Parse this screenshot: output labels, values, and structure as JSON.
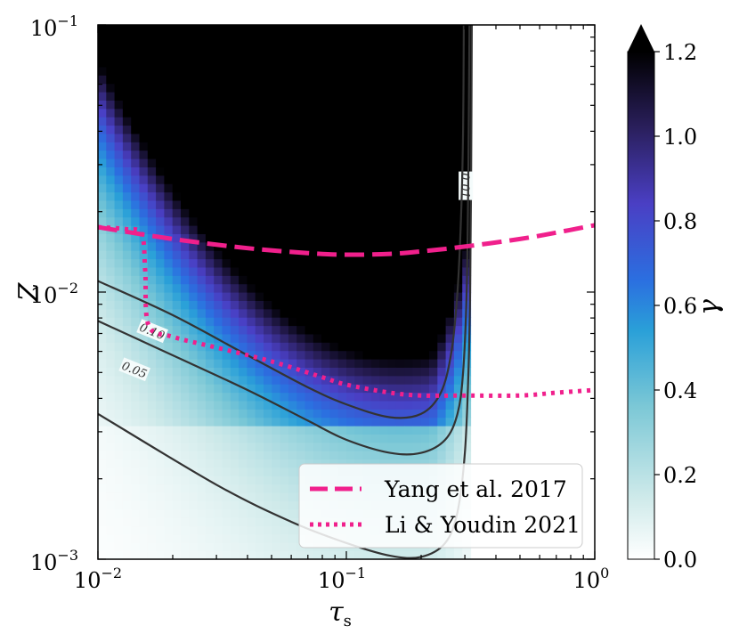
{
  "chart_data": {
    "type": "heatmap",
    "title": "",
    "xlabel": "τ",
    "xlabel_sub": "s",
    "ylabel": "Z",
    "x_scale": "log",
    "y_scale": "log",
    "xlim": [
      0.01,
      1
    ],
    "ylim": [
      0.001,
      0.1
    ],
    "x_ticks": [
      {
        "base": "10",
        "exp": "−2"
      },
      {
        "base": "10",
        "exp": "−1"
      },
      {
        "base": "10",
        "exp": "0"
      }
    ],
    "y_ticks": [
      {
        "base": "10",
        "exp": "−3"
      },
      {
        "base": "10",
        "exp": "−2"
      },
      {
        "base": "10",
        "exp": "−1"
      }
    ],
    "colorbar": {
      "label": "γ",
      "range": [
        0.0,
        1.2
      ],
      "ticks": [
        "0.0",
        "0.2",
        "0.4",
        "0.6",
        "0.8",
        "1.0",
        "1.2"
      ],
      "extend": "max",
      "colors": [
        "#ffffff",
        "#cfeaea",
        "#7cc8d6",
        "#2aa0d8",
        "#2b6fe0",
        "#4a3fc4",
        "#2a1f5c",
        "#000000"
      ]
    },
    "contours": [
      {
        "level": "0.01",
        "points": [
          [
            0.01,
            0.0035
          ],
          [
            0.03,
            0.0019
          ],
          [
            0.06,
            0.00138
          ],
          [
            0.1,
            0.00115
          ],
          [
            0.15,
            0.00103
          ],
          [
            0.2,
            0.00102
          ],
          [
            0.25,
            0.00115
          ],
          [
            0.28,
            0.0015
          ],
          [
            0.3,
            0.0025
          ],
          [
            0.31,
            0.005
          ],
          [
            0.315,
            0.01
          ],
          [
            0.318,
            0.03
          ],
          [
            0.32,
            0.1
          ]
        ]
      },
      {
        "level": "0.05",
        "points": [
          [
            0.01,
            0.0078
          ],
          [
            0.02,
            0.0058
          ],
          [
            0.04,
            0.0043
          ],
          [
            0.07,
            0.0033
          ],
          [
            0.1,
            0.0028
          ],
          [
            0.15,
            0.0025
          ],
          [
            0.2,
            0.0025
          ],
          [
            0.25,
            0.0028
          ],
          [
            0.28,
            0.0035
          ],
          [
            0.295,
            0.005
          ],
          [
            0.305,
            0.01
          ],
          [
            0.31,
            0.03
          ],
          [
            0.313,
            0.1
          ]
        ]
      },
      {
        "level": "0.10",
        "points": [
          [
            0.01,
            0.011
          ],
          [
            0.02,
            0.0082
          ],
          [
            0.04,
            0.0058
          ],
          [
            0.07,
            0.0044
          ],
          [
            0.1,
            0.0038
          ],
          [
            0.15,
            0.0034
          ],
          [
            0.2,
            0.0035
          ],
          [
            0.24,
            0.0042
          ],
          [
            0.265,
            0.006
          ],
          [
            0.28,
            0.01
          ],
          [
            0.29,
            0.02
          ],
          [
            0.295,
            0.04
          ],
          [
            0.297,
            0.1
          ]
        ]
      }
    ],
    "series": [
      {
        "name": "Yang et al. 2017",
        "style": "dashed",
        "color": "#f0208c",
        "x": [
          0.01,
          0.02,
          0.04,
          0.07,
          0.1,
          0.15,
          0.2,
          0.3,
          0.5,
          0.7,
          1.0
        ],
        "y": [
          0.0175,
          0.0158,
          0.0146,
          0.014,
          0.0138,
          0.0139,
          0.0142,
          0.0148,
          0.0158,
          0.0167,
          0.0178
        ]
      },
      {
        "name": "Li & Youdin 2021",
        "style": "dotted",
        "color": "#f0208c",
        "x": [
          0.01,
          0.013,
          0.015,
          0.0155,
          0.016,
          0.02,
          0.03,
          0.05,
          0.08,
          0.1,
          0.15,
          0.2,
          0.3,
          0.5,
          0.7,
          1.0
        ],
        "y": [
          0.0175,
          0.0172,
          0.0165,
          0.012,
          0.0075,
          0.0068,
          0.0062,
          0.0055,
          0.0048,
          0.0045,
          0.0042,
          0.0041,
          0.0041,
          0.0041,
          0.0042,
          0.0043
        ]
      }
    ],
    "legend_position": "lower-right"
  }
}
